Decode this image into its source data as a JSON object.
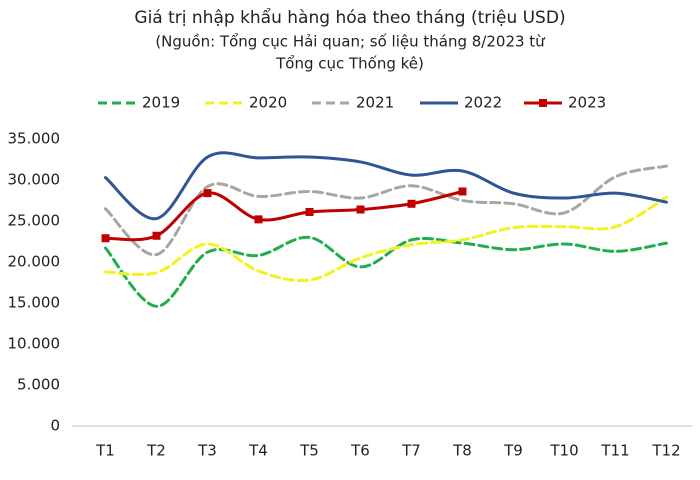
{
  "chart_data": {
    "type": "line",
    "title": "Giá trị nhập khẩu hàng hóa theo tháng (triệu USD)",
    "subtitle": [
      "(Nguồn: Tổng cục Hải quan; số liệu tháng 8/2023 từ",
      "Tổng cục Thống kê)"
    ],
    "categories": [
      "T1",
      "T2",
      "T3",
      "T4",
      "T5",
      "T6",
      "T7",
      "T8",
      "T9",
      "T10",
      "T11",
      "T12"
    ],
    "series": [
      {
        "name": "2019",
        "color": "#1fae4b",
        "dashed": true,
        "markers": false,
        "values": [
          21700,
          14600,
          21200,
          20800,
          23000,
          19400,
          22700,
          22300,
          21500,
          22200,
          21300,
          22300
        ]
      },
      {
        "name": "2020",
        "color": "#f2f21e",
        "dashed": true,
        "markers": false,
        "values": [
          18800,
          18700,
          22200,
          18900,
          17800,
          20500,
          22100,
          22700,
          24200,
          24300,
          24300,
          27900
        ]
      },
      {
        "name": "2021",
        "color": "#a6a6a6",
        "dashed": true,
        "markers": false,
        "values": [
          26500,
          20900,
          29200,
          28000,
          28600,
          27800,
          29300,
          27500,
          27100,
          26000,
          30400,
          31700
        ]
      },
      {
        "name": "2022",
        "color": "#2f5597",
        "dashed": false,
        "markers": false,
        "values": [
          30300,
          25300,
          32800,
          32700,
          32800,
          32200,
          30600,
          31100,
          28400,
          27800,
          28400,
          27300
        ]
      },
      {
        "name": "2023",
        "color": "#c00000",
        "dashed": false,
        "markers": true,
        "values": [
          22900,
          23200,
          28400,
          25200,
          26100,
          26400,
          27100,
          28600,
          null,
          null,
          null,
          null
        ]
      }
    ],
    "ylim": [
      0,
      35000
    ],
    "yticks": [
      0,
      {
        "value": 5000,
        "label": "5.000"
      },
      {
        "value": 10000,
        "label": "10.000"
      },
      {
        "value": 15000,
        "label": "15.000"
      },
      {
        "value": 20000,
        "label": "20.000"
      },
      {
        "value": 25000,
        "label": "25.000"
      },
      {
        "value": 30000,
        "label": "30.000"
      },
      {
        "value": 35000,
        "label": "35.000"
      }
    ],
    "grid": false,
    "legend": "top"
  }
}
